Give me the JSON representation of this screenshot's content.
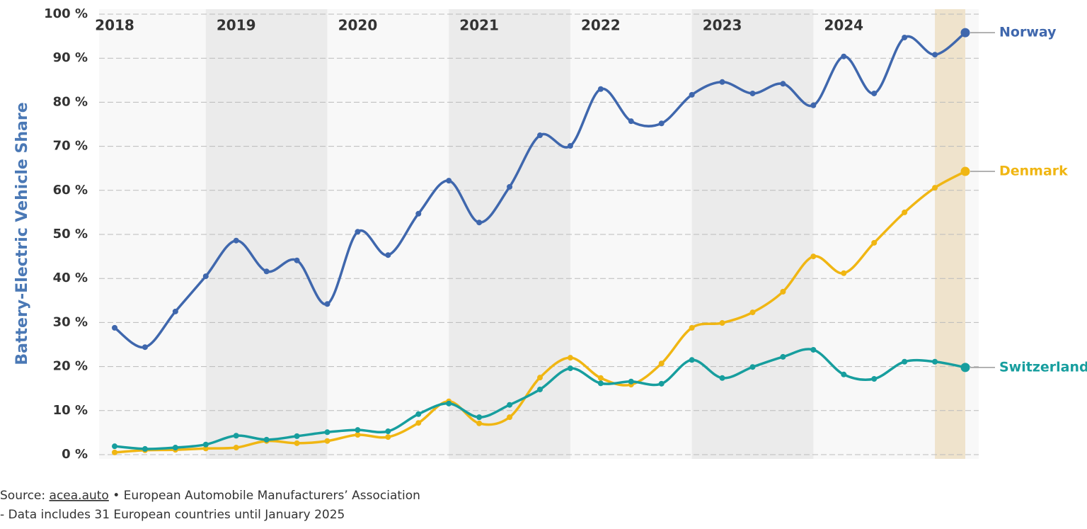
{
  "chart_data": {
    "type": "line",
    "y_label": "Battery-Electric Vehicle Share",
    "categories": [
      null,
      null,
      null,
      null,
      null,
      null,
      null,
      null,
      null,
      null,
      null,
      null,
      null,
      null,
      null,
      null,
      null,
      null,
      null,
      null,
      null,
      null,
      null,
      null,
      null,
      null,
      null,
      null,
      null
    ],
    "year_labels": [
      "2018",
      "2019",
      "2020",
      "2021",
      "2022",
      "2023",
      "2024"
    ],
    "ylim": [
      0,
      100
    ],
    "yticks": [
      {
        "value": 0,
        "label": "0 %"
      },
      {
        "value": 10,
        "label": "10 %"
      },
      {
        "value": 20,
        "label": "20 %"
      },
      {
        "value": 30,
        "label": "30 %"
      },
      {
        "value": 40,
        "label": "40 %"
      },
      {
        "value": 50,
        "label": "50 %"
      },
      {
        "value": 60,
        "label": "60 %"
      },
      {
        "value": 70,
        "label": "70 %"
      },
      {
        "value": 80,
        "label": "80 %"
      },
      {
        "value": 90,
        "label": "90 %"
      },
      {
        "value": 100,
        "label": "100 %"
      }
    ],
    "grid": true,
    "series": [
      {
        "name": "Norway",
        "color": "#3f67ad",
        "values": [
          28.8,
          24.4,
          32.5,
          40.5,
          48.6,
          41.6,
          44.1,
          34.2,
          50.6,
          45.3,
          54.7,
          62.2,
          52.7,
          60.8,
          72.5,
          70.1,
          83.0,
          75.7,
          75.2,
          81.7,
          84.6,
          82.0,
          84.2,
          79.3,
          90.4,
          82.0,
          94.7,
          90.8,
          95.8
        ]
      },
      {
        "name": "Denmark",
        "color": "#f0b613",
        "values": [
          0.5,
          1.0,
          1.1,
          1.4,
          1.6,
          3.1,
          2.6,
          3.1,
          4.5,
          4.0,
          7.2,
          12.1,
          7.1,
          8.5,
          17.5,
          22.0,
          17.4,
          15.9,
          20.7,
          28.8,
          29.9,
          32.3,
          37.0,
          45.0,
          41.2,
          48.1,
          55.0,
          60.6,
          64.3
        ]
      },
      {
        "name": "Switzerland",
        "color": "#179e9e",
        "values": [
          1.9,
          1.3,
          1.6,
          2.3,
          4.3,
          3.4,
          4.2,
          5.1,
          5.6,
          5.3,
          9.2,
          11.6,
          8.5,
          11.3,
          14.8,
          19.6,
          16.2,
          16.6,
          16.1,
          21.5,
          17.4,
          19.9,
          22.2,
          23.8,
          18.2,
          17.2,
          21.1,
          21.1,
          19.8
        ]
      }
    ]
  },
  "footer": {
    "source_prefix": "Source:",
    "source_link": "acea.auto",
    "source_suffix": "• European Automobile Manufacturers’ Association",
    "note": "- Data includes 31 European countries until January 2025"
  }
}
